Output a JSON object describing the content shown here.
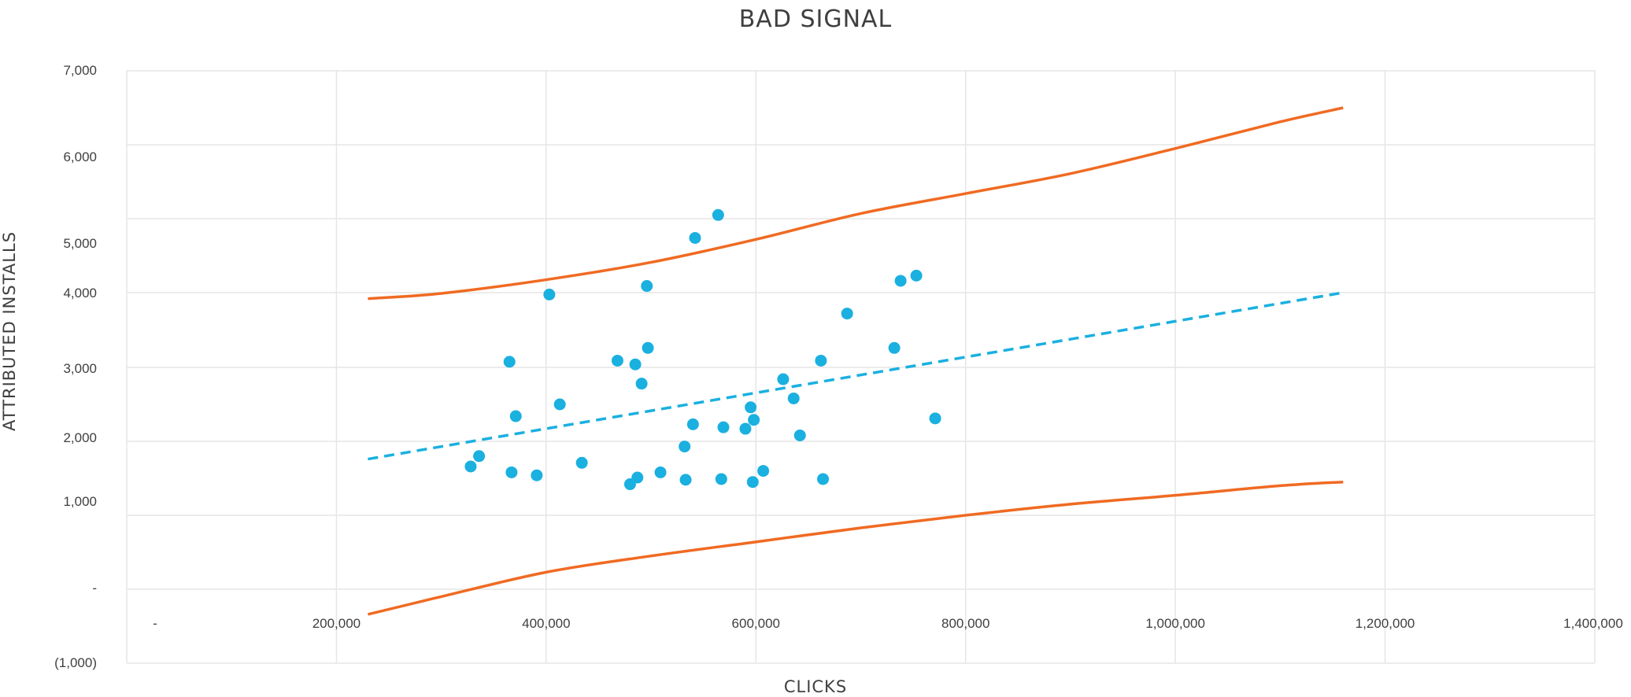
{
  "chart_data": {
    "type": "scatter",
    "title": "BAD SIGNAL",
    "xlabel": "CLICKS",
    "ylabel": "ATTRIBUTED INSTALLS",
    "xlim": [
      0,
      1400000
    ],
    "x_ticks": [
      {
        "value": 0,
        "label": "-"
      },
      {
        "value": 200000,
        "label": "200,000"
      },
      {
        "value": 400000,
        "label": "400,000"
      },
      {
        "value": 600000,
        "label": "600,000"
      },
      {
        "value": 800000,
        "label": "800,000"
      },
      {
        "value": 1000000,
        "label": "1,000,000"
      },
      {
        "value": 1200000,
        "label": "1,200,000"
      },
      {
        "value": 1400000,
        "label": "1,400,000"
      }
    ],
    "y_ticks": [
      {
        "value": -1000,
        "label": "(1,000)"
      },
      {
        "value": 0,
        "label": "-"
      },
      {
        "value": 1000,
        "label": "1,000"
      },
      {
        "value": 2000,
        "label": "2,000"
      },
      {
        "value": 3000,
        "label": "3,000"
      },
      {
        "value": 4000,
        "label": "4,000"
      },
      {
        "value": 5000,
        "label": "5,000"
      },
      {
        "value": 6000,
        "label": "6,000"
      },
      {
        "value": 7000,
        "label": "7,000"
      }
    ],
    "grid": true,
    "colors": {
      "points": "#1ab0e0",
      "trend": "#1ab0e0",
      "bounds": "#f06a22",
      "grid": "#e6e6e6",
      "text": "#3f3f3f"
    },
    "points": [
      {
        "x": 328000,
        "y": 1660
      },
      {
        "x": 336000,
        "y": 1800
      },
      {
        "x": 365000,
        "y": 3075
      },
      {
        "x": 367000,
        "y": 1580
      },
      {
        "x": 371000,
        "y": 2340
      },
      {
        "x": 391000,
        "y": 1540
      },
      {
        "x": 403000,
        "y": 3975
      },
      {
        "x": 413000,
        "y": 2500
      },
      {
        "x": 434000,
        "y": 1710
      },
      {
        "x": 468000,
        "y": 3090
      },
      {
        "x": 480000,
        "y": 1420
      },
      {
        "x": 485000,
        "y": 3040
      },
      {
        "x": 487000,
        "y": 1510
      },
      {
        "x": 491000,
        "y": 2780
      },
      {
        "x": 496000,
        "y": 4090
      },
      {
        "x": 497000,
        "y": 3260
      },
      {
        "x": 509000,
        "y": 1580
      },
      {
        "x": 532000,
        "y": 1930
      },
      {
        "x": 533000,
        "y": 1480
      },
      {
        "x": 540000,
        "y": 2230
      },
      {
        "x": 542000,
        "y": 4740
      },
      {
        "x": 564000,
        "y": 5050
      },
      {
        "x": 567000,
        "y": 1490
      },
      {
        "x": 569000,
        "y": 2190
      },
      {
        "x": 590000,
        "y": 2170
      },
      {
        "x": 595000,
        "y": 2460
      },
      {
        "x": 597000,
        "y": 1450
      },
      {
        "x": 598000,
        "y": 2290
      },
      {
        "x": 607000,
        "y": 1600
      },
      {
        "x": 626000,
        "y": 2840
      },
      {
        "x": 636000,
        "y": 2580
      },
      {
        "x": 642000,
        "y": 2080
      },
      {
        "x": 662000,
        "y": 3090
      },
      {
        "x": 664000,
        "y": 1490
      },
      {
        "x": 687000,
        "y": 3720
      },
      {
        "x": 732000,
        "y": 3260
      },
      {
        "x": 738000,
        "y": 4160
      },
      {
        "x": 753000,
        "y": 4230
      },
      {
        "x": 771000,
        "y": 2310
      }
    ],
    "trend_line": {
      "style": "dashed",
      "x": [
        230000,
        1160000
      ],
      "y": [
        1760,
        4000
      ]
    },
    "upper_bound": {
      "x": [
        230000,
        300000,
        400000,
        500000,
        600000,
        700000,
        800000,
        900000,
        1000000,
        1100000,
        1160000
      ],
      "y": [
        3920,
        3990,
        4175,
        4410,
        4720,
        5070,
        5340,
        5610,
        5950,
        6310,
        6500
      ]
    },
    "lower_bound": {
      "x": [
        230000,
        300000,
        400000,
        500000,
        600000,
        700000,
        800000,
        900000,
        1000000,
        1100000,
        1160000
      ],
      "y": [
        -340,
        -100,
        230,
        450,
        640,
        830,
        1000,
        1150,
        1270,
        1400,
        1450
      ]
    }
  }
}
